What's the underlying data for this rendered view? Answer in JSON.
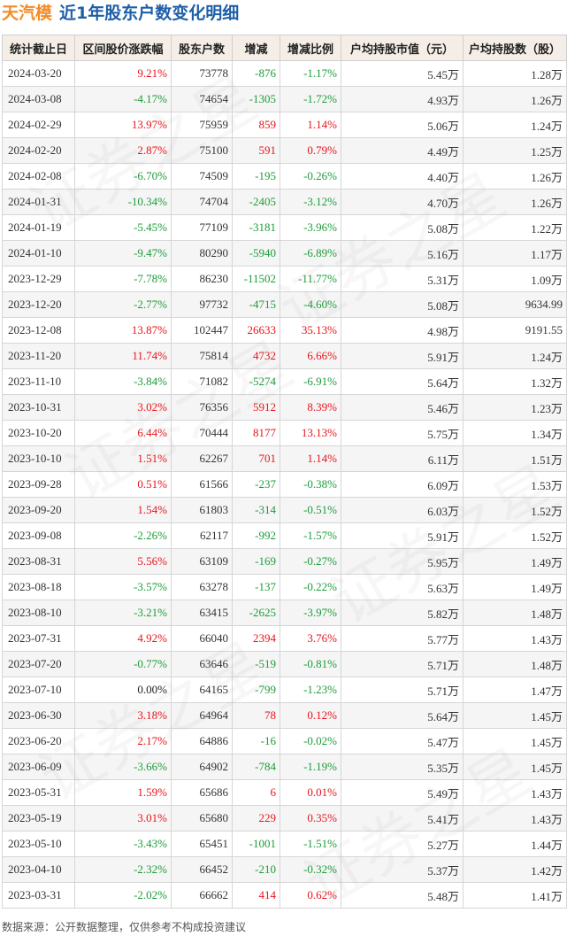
{
  "header": {
    "stock_name": "天汽模",
    "subtitle": "近1年股东户数变化明细"
  },
  "table": {
    "columns": [
      "统计截止日",
      "区间股价涨跌幅",
      "股东户数",
      "增减",
      "增减比例",
      "户均持股市值（元）",
      "户均持股数（股）"
    ],
    "rows": [
      {
        "date": "2024-03-20",
        "price_change": "9.21%",
        "holders": "73778",
        "change": "-876",
        "change_ratio": "-1.17%",
        "avg_value": "5.45万",
        "avg_shares": "1.28万"
      },
      {
        "date": "2024-03-08",
        "price_change": "-4.17%",
        "holders": "74654",
        "change": "-1305",
        "change_ratio": "-1.72%",
        "avg_value": "4.93万",
        "avg_shares": "1.26万"
      },
      {
        "date": "2024-02-29",
        "price_change": "13.97%",
        "holders": "75959",
        "change": "859",
        "change_ratio": "1.14%",
        "avg_value": "5.06万",
        "avg_shares": "1.24万"
      },
      {
        "date": "2024-02-20",
        "price_change": "2.87%",
        "holders": "75100",
        "change": "591",
        "change_ratio": "0.79%",
        "avg_value": "4.49万",
        "avg_shares": "1.25万"
      },
      {
        "date": "2024-02-08",
        "price_change": "-6.70%",
        "holders": "74509",
        "change": "-195",
        "change_ratio": "-0.26%",
        "avg_value": "4.40万",
        "avg_shares": "1.26万"
      },
      {
        "date": "2024-01-31",
        "price_change": "-10.34%",
        "holders": "74704",
        "change": "-2405",
        "change_ratio": "-3.12%",
        "avg_value": "4.70万",
        "avg_shares": "1.26万"
      },
      {
        "date": "2024-01-19",
        "price_change": "-5.45%",
        "holders": "77109",
        "change": "-3181",
        "change_ratio": "-3.96%",
        "avg_value": "5.08万",
        "avg_shares": "1.22万"
      },
      {
        "date": "2024-01-10",
        "price_change": "-9.47%",
        "holders": "80290",
        "change": "-5940",
        "change_ratio": "-6.89%",
        "avg_value": "5.16万",
        "avg_shares": "1.17万"
      },
      {
        "date": "2023-12-29",
        "price_change": "-7.78%",
        "holders": "86230",
        "change": "-11502",
        "change_ratio": "-11.77%",
        "avg_value": "5.31万",
        "avg_shares": "1.09万"
      },
      {
        "date": "2023-12-20",
        "price_change": "-2.77%",
        "holders": "97732",
        "change": "-4715",
        "change_ratio": "-4.60%",
        "avg_value": "5.08万",
        "avg_shares": "9634.99"
      },
      {
        "date": "2023-12-08",
        "price_change": "13.87%",
        "holders": "102447",
        "change": "26633",
        "change_ratio": "35.13%",
        "avg_value": "4.98万",
        "avg_shares": "9191.55"
      },
      {
        "date": "2023-11-20",
        "price_change": "11.74%",
        "holders": "75814",
        "change": "4732",
        "change_ratio": "6.66%",
        "avg_value": "5.91万",
        "avg_shares": "1.24万"
      },
      {
        "date": "2023-11-10",
        "price_change": "-3.84%",
        "holders": "71082",
        "change": "-5274",
        "change_ratio": "-6.91%",
        "avg_value": "5.64万",
        "avg_shares": "1.32万"
      },
      {
        "date": "2023-10-31",
        "price_change": "3.02%",
        "holders": "76356",
        "change": "5912",
        "change_ratio": "8.39%",
        "avg_value": "5.46万",
        "avg_shares": "1.23万"
      },
      {
        "date": "2023-10-20",
        "price_change": "6.44%",
        "holders": "70444",
        "change": "8177",
        "change_ratio": "13.13%",
        "avg_value": "5.75万",
        "avg_shares": "1.34万"
      },
      {
        "date": "2023-10-10",
        "price_change": "1.51%",
        "holders": "62267",
        "change": "701",
        "change_ratio": "1.14%",
        "avg_value": "6.11万",
        "avg_shares": "1.51万"
      },
      {
        "date": "2023-09-28",
        "price_change": "0.51%",
        "holders": "61566",
        "change": "-237",
        "change_ratio": "-0.38%",
        "avg_value": "6.09万",
        "avg_shares": "1.53万"
      },
      {
        "date": "2023-09-20",
        "price_change": "1.54%",
        "holders": "61803",
        "change": "-314",
        "change_ratio": "-0.51%",
        "avg_value": "6.03万",
        "avg_shares": "1.52万"
      },
      {
        "date": "2023-09-08",
        "price_change": "-2.26%",
        "holders": "62117",
        "change": "-992",
        "change_ratio": "-1.57%",
        "avg_value": "5.91万",
        "avg_shares": "1.52万"
      },
      {
        "date": "2023-08-31",
        "price_change": "5.56%",
        "holders": "63109",
        "change": "-169",
        "change_ratio": "-0.27%",
        "avg_value": "5.95万",
        "avg_shares": "1.49万"
      },
      {
        "date": "2023-08-18",
        "price_change": "-3.57%",
        "holders": "63278",
        "change": "-137",
        "change_ratio": "-0.22%",
        "avg_value": "5.63万",
        "avg_shares": "1.49万"
      },
      {
        "date": "2023-08-10",
        "price_change": "-3.21%",
        "holders": "63415",
        "change": "-2625",
        "change_ratio": "-3.97%",
        "avg_value": "5.82万",
        "avg_shares": "1.48万"
      },
      {
        "date": "2023-07-31",
        "price_change": "4.92%",
        "holders": "66040",
        "change": "2394",
        "change_ratio": "3.76%",
        "avg_value": "5.77万",
        "avg_shares": "1.43万"
      },
      {
        "date": "2023-07-20",
        "price_change": "-0.77%",
        "holders": "63646",
        "change": "-519",
        "change_ratio": "-0.81%",
        "avg_value": "5.71万",
        "avg_shares": "1.48万"
      },
      {
        "date": "2023-07-10",
        "price_change": "0.00%",
        "holders": "64165",
        "change": "-799",
        "change_ratio": "-1.23%",
        "avg_value": "5.71万",
        "avg_shares": "1.47万"
      },
      {
        "date": "2023-06-30",
        "price_change": "3.18%",
        "holders": "64964",
        "change": "78",
        "change_ratio": "0.12%",
        "avg_value": "5.64万",
        "avg_shares": "1.45万"
      },
      {
        "date": "2023-06-20",
        "price_change": "2.17%",
        "holders": "64886",
        "change": "-16",
        "change_ratio": "-0.02%",
        "avg_value": "5.47万",
        "avg_shares": "1.45万"
      },
      {
        "date": "2023-06-09",
        "price_change": "-3.66%",
        "holders": "64902",
        "change": "-784",
        "change_ratio": "-1.19%",
        "avg_value": "5.35万",
        "avg_shares": "1.45万"
      },
      {
        "date": "2023-05-31",
        "price_change": "1.59%",
        "holders": "65686",
        "change": "6",
        "change_ratio": "0.01%",
        "avg_value": "5.49万",
        "avg_shares": "1.43万"
      },
      {
        "date": "2023-05-19",
        "price_change": "3.01%",
        "holders": "65680",
        "change": "229",
        "change_ratio": "0.35%",
        "avg_value": "5.41万",
        "avg_shares": "1.43万"
      },
      {
        "date": "2023-05-10",
        "price_change": "-3.43%",
        "holders": "65451",
        "change": "-1001",
        "change_ratio": "-1.51%",
        "avg_value": "5.27万",
        "avg_shares": "1.44万"
      },
      {
        "date": "2023-04-10",
        "price_change": "-2.32%",
        "holders": "66452",
        "change": "-210",
        "change_ratio": "-0.32%",
        "avg_value": "5.37万",
        "avg_shares": "1.42万"
      },
      {
        "date": "2023-03-31",
        "price_change": "-2.02%",
        "holders": "66662",
        "change": "414",
        "change_ratio": "0.62%",
        "avg_value": "5.48万",
        "avg_shares": "1.41万"
      }
    ]
  },
  "footer": {
    "source": "数据来源：公开数据整理，仅供参考不构成投资建议"
  },
  "watermark": {
    "text": "证券之星"
  },
  "colors": {
    "positive": "#e8141b",
    "negative": "#1e9b3a",
    "header_bg": "#f4eee6",
    "stock_name": "#f28c28",
    "subtitle": "#1f5fa8"
  }
}
